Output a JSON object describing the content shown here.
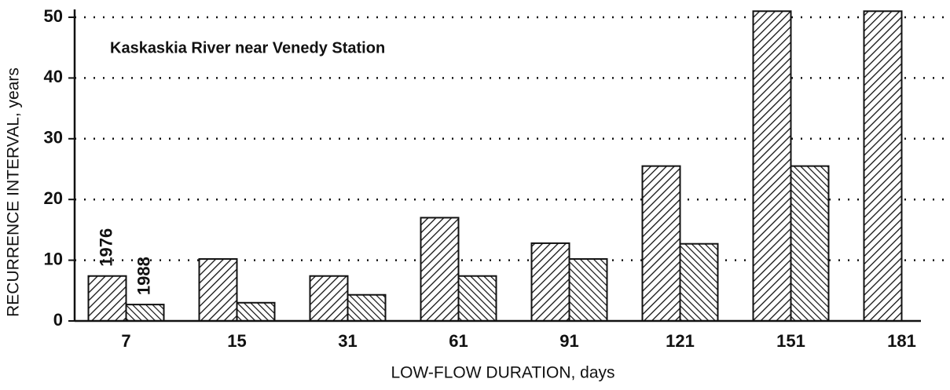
{
  "chart_data": {
    "type": "bar",
    "title": "Kaskaskia River near Venedy Station",
    "x_label": "LOW-FLOW DURATION, days",
    "y_label": "RECURRENCE INTERVAL, years",
    "categories": [
      "7",
      "15",
      "31",
      "61",
      "91",
      "121",
      "151",
      "181"
    ],
    "series": [
      {
        "name": "1976",
        "color": "#111111",
        "values": [
          7.4,
          10.2,
          7.4,
          17,
          12.8,
          25.5,
          51,
          51
        ]
      },
      {
        "name": "1988",
        "color": "#111111",
        "values": [
          2.7,
          3,
          4.3,
          7.4,
          10.2,
          12.7,
          25.5,
          null
        ]
      }
    ],
    "ylim": [
      0,
      50
    ],
    "yticks": [
      0,
      10,
      20,
      30,
      40,
      50
    ],
    "grid": true
  }
}
